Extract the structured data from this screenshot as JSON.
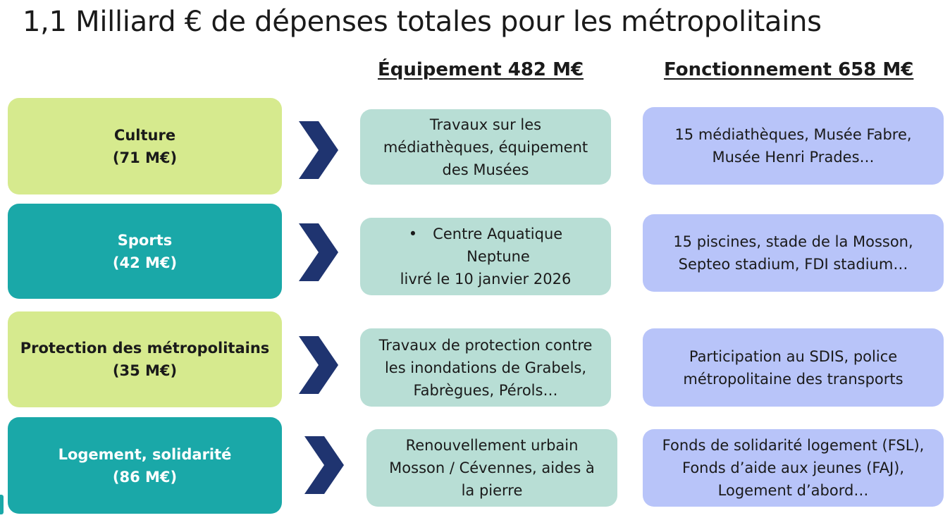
{
  "title": "1,1 Milliard € de dépenses totales pour les métropolitains",
  "headers": {
    "equipement": "Équipement 482 M€",
    "fonctionnement": "Fonctionnement 658 M€"
  },
  "rows": [
    {
      "category": "Culture",
      "amount": "(71 M€)",
      "equipement": [
        "Travaux sur les",
        "médiathèques, équipement",
        "des Musées"
      ],
      "fonctionnement": [
        "15 médiathèques, Musée Fabre,",
        "Musée Henri Prades…"
      ]
    },
    {
      "category": "Sports",
      "amount": "(42 M€)",
      "equipement": [
        "Centre Aquatique",
        "Neptune",
        "livré le 10 janvier 2026"
      ],
      "equipement_bullet": "•",
      "fonctionnement": [
        "15 piscines, stade de la Mosson,",
        "Septeo stadium, FDI stadium…"
      ]
    },
    {
      "category": "Protection des métropolitains",
      "amount": "(35 M€)",
      "equipement": [
        "Travaux de protection contre",
        "les inondations de Grabels,",
        "Fabrègues, Pérols…"
      ],
      "fonctionnement": [
        "Participation au SDIS, police",
        "métropolitaine des transports"
      ]
    },
    {
      "category": "Logement, solidarité",
      "amount": "(86 M€)",
      "equipement": [
        "Renouvellement urbain",
        "Mosson / Cévennes, aides à",
        "la pierre"
      ],
      "fonctionnement": [
        "Fonds de solidarité logement (FSL),",
        "Fonds d’aide aux jeunes (FAJ),",
        "Logement d’abord…"
      ]
    }
  ],
  "colors": {
    "green": "#d6ea8e",
    "teal": "#1aa8a8",
    "equipement_bg": "#b8ded5",
    "fonctionnement_bg": "#b8c4f9",
    "arrow": "#1f3470"
  },
  "icons": {
    "arrow": "chevron-right-icon"
  }
}
